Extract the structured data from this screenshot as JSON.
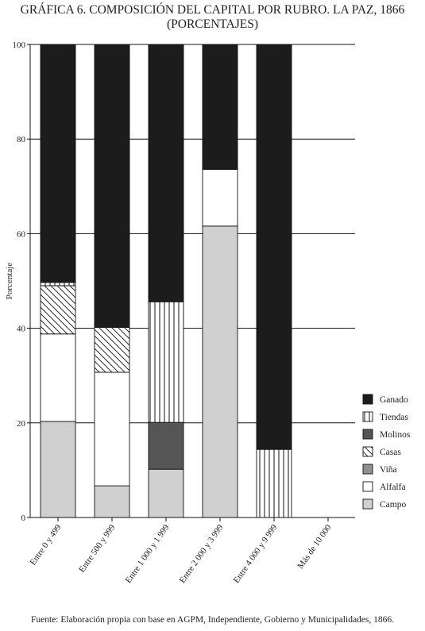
{
  "chart_data": {
    "type": "bar",
    "stacked": true,
    "title": "GRÁFICA 6. COMPOSICIÓN DEL CAPITAL POR RUBRO. LA PAZ, 1866",
    "subtitle": "(PORCENTAJES)",
    "ylabel": "Porcentaje",
    "xlabel": "",
    "ylim": [
      0,
      100
    ],
    "yticks": [
      0,
      20,
      40,
      60,
      80,
      100
    ],
    "grid": true,
    "legend_position": "right",
    "categories": [
      "Entre 0 y 499",
      "Entre 500 y 999",
      "Entre 1 000 y 1 999",
      "Entre 2 000 y 3 999",
      "Entre 4 000 y 9 999",
      "Más de 10 000"
    ],
    "series": [
      {
        "name": "Campo",
        "values": [
          20.3,
          6.7,
          10.2,
          61.6,
          0,
          0
        ],
        "fill": "#d0d0d0",
        "pattern": "solid"
      },
      {
        "name": "Alfalfa",
        "values": [
          18.5,
          24.0,
          0,
          12.0,
          0,
          0
        ],
        "fill": "#ffffff",
        "pattern": "solid"
      },
      {
        "name": "Viña",
        "values": [
          0,
          0,
          0,
          0,
          0,
          0
        ],
        "fill": "#909090",
        "pattern": "solid"
      },
      {
        "name": "Casas",
        "values": [
          10.2,
          9.5,
          0,
          0,
          0,
          0
        ],
        "fill": "#ffffff",
        "pattern": "diagonal"
      },
      {
        "name": "Molinos",
        "values": [
          0,
          0,
          9.9,
          0,
          0,
          0
        ],
        "fill": "#555555",
        "pattern": "solid"
      },
      {
        "name": "Tiendas",
        "values": [
          0.7,
          0,
          25.5,
          0,
          14.4,
          0
        ],
        "fill": "#ffffff",
        "pattern": "vertical"
      },
      {
        "name": "Ganado",
        "values": [
          50.3,
          59.8,
          54.4,
          26.4,
          85.6,
          0
        ],
        "fill": "#1c1c1c",
        "pattern": "solid"
      }
    ],
    "legend_order": [
      "Ganado",
      "Tiendas",
      "Molinos",
      "Casas",
      "Viña",
      "Alfalfa",
      "Campo"
    ]
  },
  "source": "Fuente: Elaboración propia con base en AGPM, Independiente, Gobierno y Municipalidades, 1866."
}
